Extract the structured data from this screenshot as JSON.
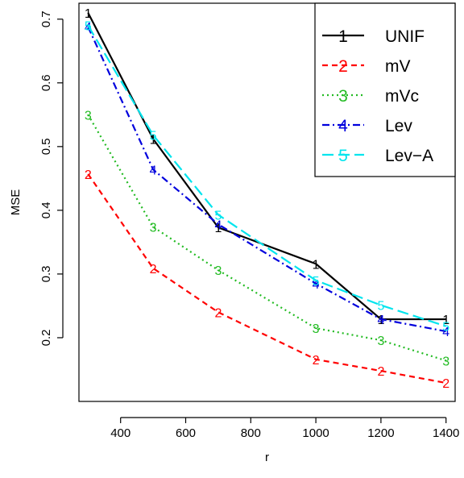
{
  "chart_data": {
    "type": "line",
    "xlabel": "r",
    "ylabel": "MSE",
    "x": [
      300,
      500,
      700,
      1000,
      1200,
      1400
    ],
    "xticks": [
      400,
      600,
      800,
      1000,
      1200,
      1400
    ],
    "yticks": [
      0.2,
      0.3,
      0.4,
      0.5,
      0.6,
      0.7
    ],
    "xlim": [
      272,
      1428
    ],
    "ylim": [
      0.1,
      0.725
    ],
    "grid": false,
    "legend_position": "top-right",
    "series": [
      {
        "name": "UNIF",
        "symbol": "1",
        "color": "#000000",
        "dash": "",
        "values": [
          0.71,
          0.512,
          0.373,
          0.316,
          0.229,
          0.229
        ]
      },
      {
        "name": "mV",
        "symbol": "2",
        "color": "#ff0000",
        "dash": "7,5",
        "values": [
          0.457,
          0.309,
          0.24,
          0.166,
          0.148,
          0.129
        ]
      },
      {
        "name": "mVc",
        "symbol": "3",
        "color": "#22bb22",
        "dash": "2,4",
        "values": [
          0.55,
          0.374,
          0.306,
          0.215,
          0.196,
          0.164
        ]
      },
      {
        "name": "Lev",
        "symbol": "4",
        "color": "#0000dd",
        "dash": "9,4,2,4",
        "values": [
          0.688,
          0.464,
          0.378,
          0.285,
          0.229,
          0.21
        ]
      },
      {
        "name": "Lev−A",
        "symbol": "5",
        "color": "#00e5ee",
        "dash": "14,6",
        "values": [
          0.69,
          0.518,
          0.393,
          0.29,
          0.251,
          0.218
        ]
      }
    ]
  }
}
